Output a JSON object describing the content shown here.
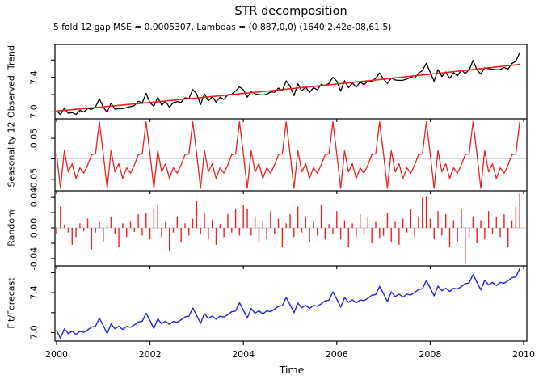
{
  "title": "STR decomposition",
  "subtitle": "5 fold 12 gap MSE = 0.0005307, Lambdas = (0.887,0,0) (1640,2.42e-08,61.5)",
  "xlabel": "Time",
  "xtick_labels": [
    "2000",
    "2002",
    "2004",
    "2006",
    "2008",
    "2010"
  ],
  "panels": [
    {
      "label": "Observed, Trend",
      "tick_labels": [
        "7.0",
        "7.4"
      ]
    },
    {
      "label": "Seasonality 12",
      "tick_labels": [
        "0.05",
        "-0.05"
      ]
    },
    {
      "label": "Random",
      "tick_labels": [
        "0.04",
        "0.00",
        "-0.04"
      ]
    },
    {
      "label": "Fit/Forecast",
      "tick_labels": [
        "7.0",
        "7.4"
      ]
    }
  ],
  "chart_data": {
    "type": "line",
    "title": "STR decomposition",
    "subtitle": "5 fold 12 gap MSE = 0.0005307, Lambdas = (0.887,0,0) (1640,2.42e-08,61.5)",
    "xlabel": "Time",
    "x_start": 2000,
    "frequency": 12,
    "months": 120,
    "xticks": [
      2000,
      2002,
      2004,
      2006,
      2008,
      2010
    ],
    "xlim": [
      2000,
      2010.1
    ],
    "panels": [
      {
        "name": "Observed, Trend",
        "ylim": [
          6.92,
          7.78
        ],
        "yticks": [
          7.0,
          7.2,
          7.4,
          7.6
        ],
        "labeled_ticks": [
          7.0,
          7.4
        ],
        "series": [
          "observed",
          "trend"
        ]
      },
      {
        "name": "Seasonality 12",
        "ylim": [
          -0.078,
          0.0975
        ],
        "yticks": [
          -0.05,
          0,
          0.05
        ],
        "labeled_ticks": [
          0.05,
          -0.05
        ],
        "zero_line": true,
        "series": [
          "seasonal"
        ]
      },
      {
        "name": "Random",
        "ylim": [
          -0.0496,
          0.0486
        ],
        "yticks": [
          -0.04,
          -0.02,
          0,
          0.02,
          0.04
        ],
        "labeled_ticks": [
          0.04,
          0.0,
          -0.04
        ],
        "zero_line": true,
        "series": [
          "random_bars"
        ]
      },
      {
        "name": "Fit/Forecast",
        "ylim": [
          6.915,
          7.668
        ],
        "yticks": [
          7.0,
          7.2,
          7.4,
          7.6
        ],
        "labeled_ticks": [
          7.0,
          7.4
        ],
        "series": [
          "fit"
        ]
      }
    ],
    "trend": {
      "start": 7.01,
      "end": 7.55,
      "curve": 0.06
    },
    "seasonal12": [
      0.012,
      -0.072,
      0.02,
      -0.032,
      -0.012,
      -0.048,
      -0.022,
      -0.035,
      -0.015,
      0.01,
      0.012,
      0.09
    ],
    "random": [
      -0.008,
      0.028,
      0.004,
      -0.006,
      -0.022,
      -0.012,
      0.006,
      -0.004,
      0.012,
      -0.028,
      -0.006,
      0.008,
      -0.018,
      0.004,
      0.015,
      -0.008,
      -0.025,
      0.006,
      -0.012,
      0.008,
      -0.005,
      0.018,
      -0.01,
      0.02,
      -0.015,
      0.025,
      0.03,
      -0.012,
      0.008,
      -0.03,
      -0.006,
      0.015,
      -0.018,
      0.006,
      -0.01,
      0.012,
      0.035,
      -0.008,
      0.02,
      -0.015,
      0.01,
      -0.022,
      0.005,
      -0.012,
      0.018,
      -0.006,
      0.025,
      -0.01,
      0.03,
      0.025,
      -0.01,
      0.015,
      -0.02,
      0.008,
      -0.015,
      0.022,
      -0.008,
      0.012,
      -0.025,
      0.006,
      0.018,
      -0.012,
      0.028,
      -0.006,
      0.015,
      -0.018,
      0.008,
      -0.01,
      0.03,
      -0.015,
      0.005,
      -0.008,
      0.022,
      -0.015,
      0.01,
      -0.025,
      0.006,
      -0.012,
      0.018,
      -0.008,
      0.015,
      -0.02,
      0.008,
      -0.014,
      -0.01,
      0.02,
      -0.018,
      0.008,
      -0.022,
      0.012,
      -0.006,
      0.025,
      -0.012,
      0.015,
      0.04,
      0.041,
      0.012,
      -0.015,
      0.022,
      -0.01,
      0.018,
      -0.025,
      0.01,
      -0.018,
      0.025,
      -0.046,
      -0.012,
      0.015,
      -0.02,
      0.01,
      -0.015,
      0.022,
      -0.008,
      0.015,
      -0.012,
      0.018,
      -0.025,
      0.01,
      0.028,
      0.045
    ],
    "derivation": {
      "observed": "trend + seasonal + random",
      "fit": "trend + seasonal"
    },
    "colors": {
      "observed": "#000000",
      "trend": "#ee2020",
      "seasonal": "#ee2020",
      "random": "#ee2020",
      "fit": "#2323d8",
      "zero_line": "#d4d4d4",
      "axis": "#000000",
      "background": "#ffffff"
    },
    "legend": "none",
    "grid": "off"
  }
}
